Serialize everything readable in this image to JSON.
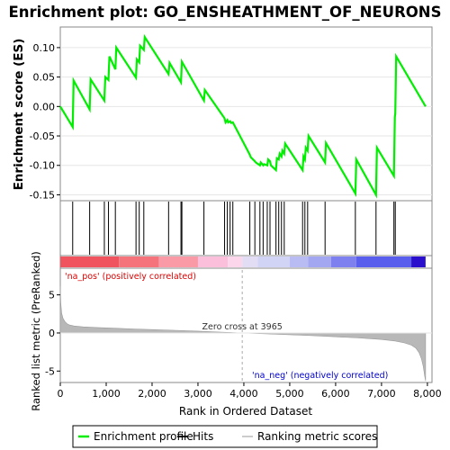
{
  "chart_data": {
    "type": "line",
    "title": "Enrichment plot: GO_ENSHEATHMENT_OF_NEURONS",
    "xlabel": "Rank in Ordered Dataset",
    "es_panel": {
      "ylabel": "Enrichment score (ES)",
      "ylim": [
        -0.16,
        0.135
      ],
      "yticks": [
        0.1,
        0.05,
        0.0,
        -0.05,
        -0.1,
        -0.15
      ],
      "ytick_labels": [
        "0.10",
        "0.05",
        "0.00",
        "-0.05",
        "-0.10",
        "-0.15"
      ],
      "series": [
        {
          "name": "Enrichment profile",
          "color": "#00ee00",
          "x": [
            0,
            270,
            290,
            640,
            660,
            960,
            980,
            1050,
            1070,
            1200,
            1220,
            1650,
            1670,
            1720,
            1740,
            1820,
            1840,
            2360,
            2380,
            2630,
            2650,
            3130,
            3150,
            3580,
            3600,
            3640,
            3660,
            3700,
            3720,
            3760,
            3780,
            4130,
            4150,
            4240,
            4260,
            4350,
            4370,
            4420,
            4440,
            4510,
            4530,
            4570,
            4590,
            4700,
            4720,
            4760,
            4780,
            4820,
            4840,
            4880,
            4900,
            5280,
            5300,
            5330,
            5350,
            5390,
            5410,
            5770,
            5790,
            6430,
            6450,
            6880,
            6900,
            7270,
            7290,
            7300,
            7320,
            7960
          ],
          "values": [
            0.0,
            -0.035,
            0.044,
            -0.005,
            0.046,
            0.01,
            0.05,
            0.045,
            0.085,
            0.063,
            0.1,
            0.049,
            0.08,
            0.075,
            0.103,
            0.096,
            0.118,
            0.055,
            0.074,
            0.041,
            0.076,
            0.01,
            0.028,
            -0.02,
            -0.027,
            -0.023,
            -0.027,
            -0.025,
            -0.028,
            -0.027,
            -0.03,
            -0.082,
            -0.086,
            -0.093,
            -0.095,
            -0.1,
            -0.095,
            -0.1,
            -0.098,
            -0.1,
            -0.09,
            -0.093,
            -0.1,
            -0.108,
            -0.088,
            -0.09,
            -0.08,
            -0.085,
            -0.075,
            -0.08,
            -0.063,
            -0.108,
            -0.085,
            -0.09,
            -0.07,
            -0.075,
            -0.05,
            -0.095,
            -0.062,
            -0.148,
            -0.09,
            -0.15,
            -0.07,
            -0.118,
            -0.018,
            -0.012,
            0.085,
            0.0
          ]
        }
      ]
    },
    "hits": {
      "name": "Hits",
      "positions": [
        270,
        640,
        960,
        1050,
        1200,
        1650,
        1720,
        1820,
        2360,
        2630,
        2650,
        3130,
        3580,
        3640,
        3700,
        3760,
        4130,
        4240,
        4350,
        4420,
        4510,
        4570,
        4700,
        4760,
        4820,
        4880,
        5280,
        5330,
        5390,
        5770,
        6430,
        6880,
        7270,
        7300
      ]
    },
    "ranked_panel": {
      "ylabel": "Ranked list metric (PreRanked)",
      "ylim": [
        -6.5,
        8.5
      ],
      "yticks": [
        5,
        0,
        -5
      ],
      "ytick_labels": [
        "5",
        "0",
        "-5"
      ],
      "series": [
        {
          "name": "Ranking metric scores",
          "x": [
            0,
            10,
            30,
            60,
            100,
            150,
            200,
            300,
            500,
            800,
            1200,
            1600,
            2000,
            2500,
            3000,
            3500,
            3965,
            4500,
            5000,
            5500,
            6000,
            6500,
            7000,
            7300,
            7500,
            7650,
            7750,
            7820,
            7870,
            7910,
            7940,
            7960
          ],
          "values": [
            6.2,
            4.0,
            2.6,
            1.9,
            1.5,
            1.2,
            1.05,
            0.92,
            0.8,
            0.72,
            0.62,
            0.53,
            0.45,
            0.35,
            0.25,
            0.12,
            0.0,
            -0.12,
            -0.24,
            -0.36,
            -0.5,
            -0.65,
            -0.85,
            -1.05,
            -1.3,
            -1.6,
            -2.0,
            -2.6,
            -3.4,
            -4.4,
            -5.6,
            -6.3
          ]
        }
      ],
      "zero_cross_label": "Zero cross at 3965",
      "zero_cross_x": 3965,
      "pos_label": "'na_pos' (positively correlated)",
      "neg_label": "'na_neg' (negatively correlated)",
      "pos_color": "#dd0000",
      "neg_color": "#0000cc"
    },
    "xlim": [
      0,
      8100
    ],
    "xticks": [
      0,
      1000,
      2000,
      3000,
      4000,
      5000,
      6000,
      7000,
      8000
    ],
    "xtick_labels": [
      "0",
      "1,000",
      "2,000",
      "3,000",
      "4,000",
      "5,000",
      "6,000",
      "7,000",
      "8,000"
    ],
    "colorbar": {
      "segments": [
        {
          "end": 1280,
          "color": "#f0555f"
        },
        {
          "end": 2150,
          "color": "#f5737b"
        },
        {
          "end": 3000,
          "color": "#f99aa6"
        },
        {
          "end": 3650,
          "color": "#fcbfdb"
        },
        {
          "end": 3965,
          "color": "#fcd6ea"
        },
        {
          "end": 4300,
          "color": "#e2dcf5"
        },
        {
          "end": 5000,
          "color": "#d2d4f6"
        },
        {
          "end": 5400,
          "color": "#b9bcf3"
        },
        {
          "end": 5900,
          "color": "#a3a6f0"
        },
        {
          "end": 6450,
          "color": "#7d80ee"
        },
        {
          "end": 7650,
          "color": "#5a5eec"
        },
        {
          "end": 7960,
          "color": "#2a10cc"
        }
      ]
    },
    "legend": {
      "items": [
        {
          "label": "Enrichment profile",
          "color": "#00ee00"
        },
        {
          "label": "Hits",
          "color": "#000000"
        },
        {
          "label": "Ranking metric scores",
          "color": "#cccccc"
        }
      ]
    }
  }
}
